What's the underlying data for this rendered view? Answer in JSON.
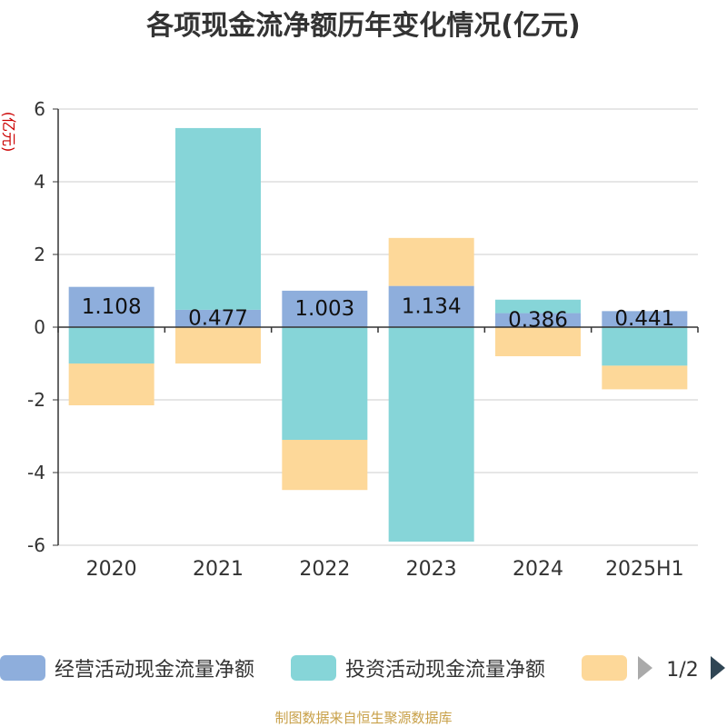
{
  "chart_data": {
    "type": "bar",
    "stacked": true,
    "title": "各项现金流净额历年变化情况(亿元)",
    "ylabel": "(亿元)",
    "xlabel": "",
    "categories": [
      "2020",
      "2021",
      "2022",
      "2023",
      "2024",
      "2025H1"
    ],
    "ylim": [
      -6,
      6
    ],
    "yticks": [
      -6,
      -4,
      -2,
      0,
      2,
      4,
      6
    ],
    "grid": true,
    "series": [
      {
        "name": "经营活动现金流量净额",
        "color": "#8eaedc",
        "values": [
          1.108,
          0.477,
          1.003,
          1.134,
          0.386,
          0.441
        ],
        "labels": [
          "1.108",
          "0.477",
          "1.003",
          "1.134",
          "0.386",
          "0.441"
        ]
      },
      {
        "name": "投资活动现金流量净额",
        "color": "#86d5d8",
        "values": [
          -1.0,
          5.0,
          -3.1,
          -5.9,
          0.37,
          -1.06
        ]
      },
      {
        "name": "",
        "color": "#fdd899",
        "values": [
          -1.15,
          -1.0,
          -1.38,
          1.32,
          -0.8,
          -0.65
        ]
      }
    ],
    "legend": {
      "position": "bottom",
      "page": "1/2"
    }
  },
  "source": "制图数据来自恒生聚源数据库"
}
